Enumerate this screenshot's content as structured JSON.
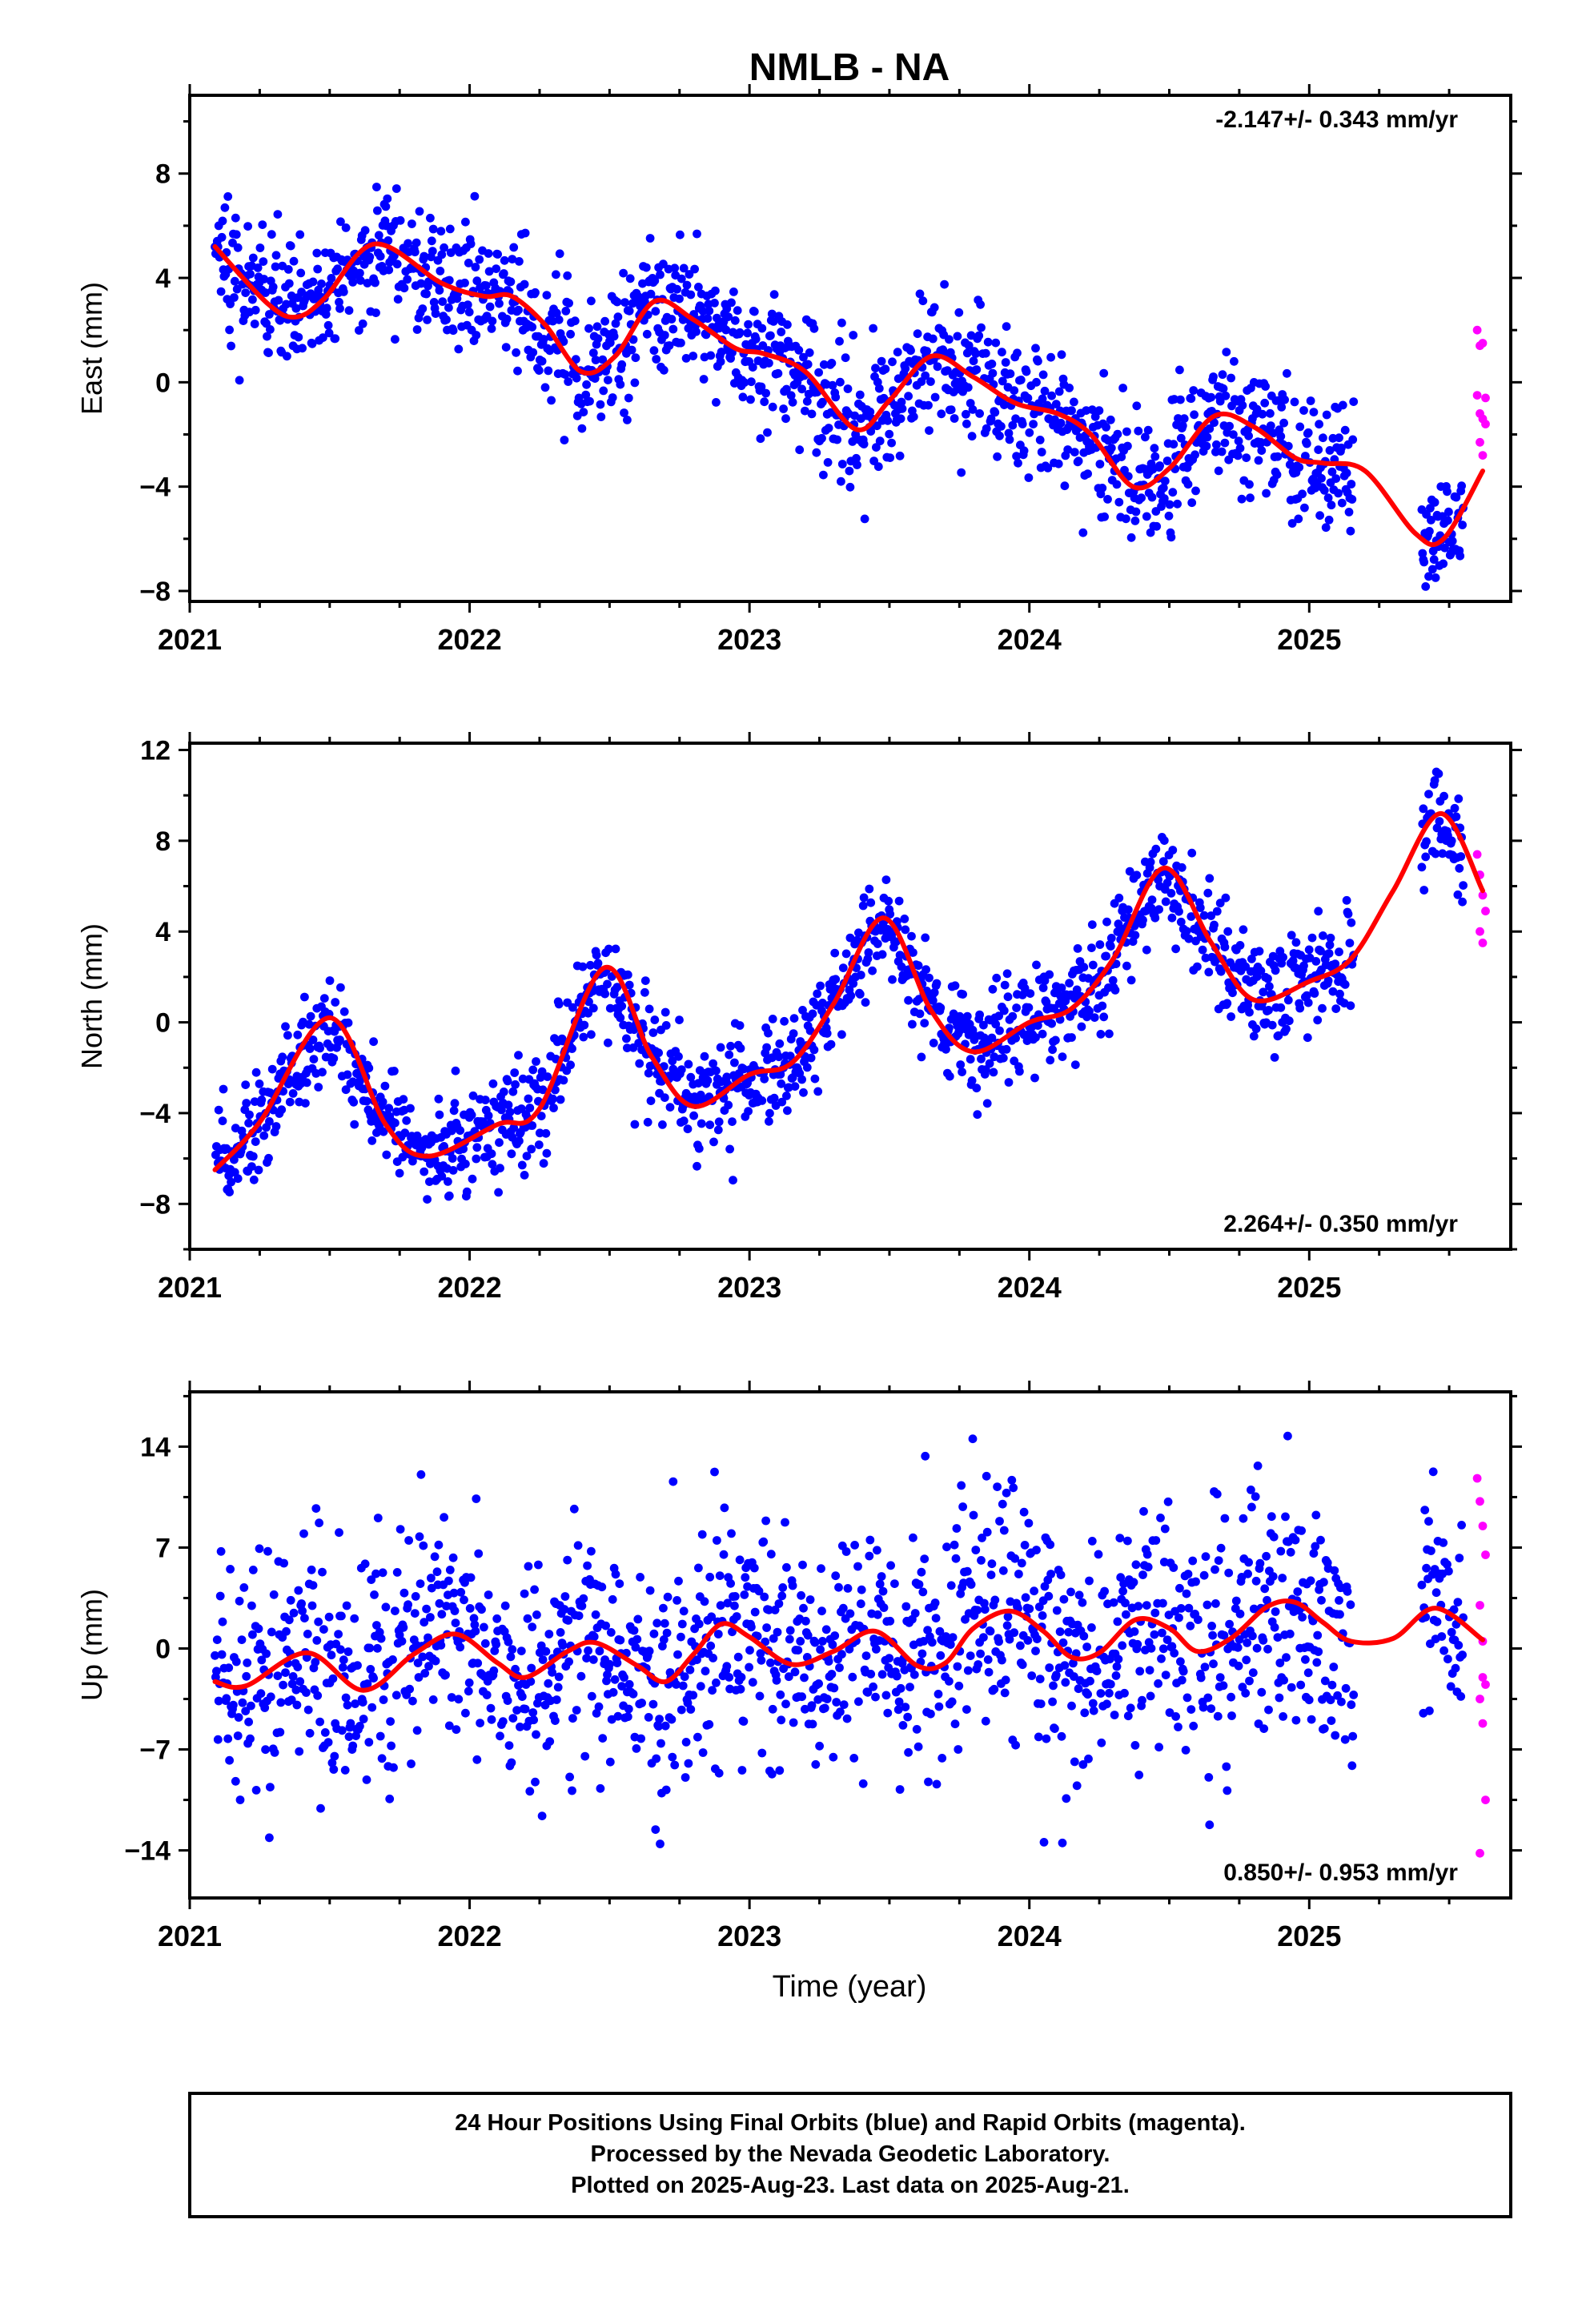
{
  "title": "NMLB - NA",
  "x_axis_label": "Time (year)",
  "footer": {
    "line1": "24 Hour Positions Using Final Orbits (blue) and Rapid Orbits (magenta).",
    "line2": "Processed by the Nevada Geodetic Laboratory.",
    "line3": "Plotted on 2025-Aug-23. Last data on 2025-Aug-21."
  },
  "colors": {
    "final_orbits": "#0000ff",
    "rapid_orbits": "#ff00ff",
    "model_fit": "#ff0000",
    "frame": "#000000"
  },
  "chart_data": [
    {
      "type": "scatter",
      "panel": "east",
      "ylabel": "East (mm)",
      "rate_text": "-2.147+/- 0.343 mm/yr",
      "rate_position": "top-right",
      "xlim": [
        2021.0,
        2025.72
      ],
      "ylim": [
        -8.4,
        11.0
      ],
      "x_ticks": [
        2021,
        2022,
        2023,
        2024,
        2025
      ],
      "y_ticks": [
        -8,
        -4,
        0,
        4,
        8
      ],
      "grid": false,
      "final_orbits": {
        "x_range": [
          2021.09,
          2025.55
        ],
        "approx_trend_start": 5.3,
        "rate_mm_per_yr": -2.147,
        "seasonal_amplitude_mm": 1.5,
        "scatter_std_mm": 1.25
      },
      "rapid_orbits": {
        "x": [
          2025.6,
          2025.61,
          2025.62,
          2025.63,
          2025.6,
          2025.61,
          2025.62,
          2025.63,
          2025.61,
          2025.62
        ],
        "y": [
          2.0,
          1.4,
          1.5,
          -0.6,
          -0.5,
          -1.2,
          -1.4,
          -1.6,
          -2.3,
          -2.8
        ]
      },
      "model_fit": {
        "x": [
          2021.09,
          2021.28,
          2021.38,
          2021.48,
          2021.66,
          2021.9,
          2022.05,
          2022.15,
          2022.27,
          2022.4,
          2022.52,
          2022.66,
          2022.8,
          2022.95,
          2023.05,
          2023.2,
          2023.38,
          2023.5,
          2023.65,
          2023.8,
          2023.95,
          2024.1,
          2024.22,
          2024.37,
          2024.5,
          2024.66,
          2024.8,
          2024.95,
          2025.05,
          2025.2,
          2025.38,
          2025.48,
          2025.62
        ],
        "y": [
          5.2,
          3.0,
          2.5,
          3.2,
          5.3,
          3.8,
          3.3,
          3.3,
          2.2,
          0.4,
          1.0,
          3.1,
          2.4,
          1.3,
          1.1,
          0.4,
          -1.8,
          -0.7,
          1.0,
          0.2,
          -0.8,
          -1.2,
          -2.0,
          -4.0,
          -3.3,
          -1.3,
          -1.7,
          -2.9,
          -3.1,
          -3.4,
          -5.8,
          -6.0,
          -3.4
        ]
      }
    },
    {
      "type": "scatter",
      "panel": "north",
      "ylabel": "North (mm)",
      "rate_text": "2.264+/- 0.350 mm/yr",
      "rate_position": "bottom-right",
      "xlim": [
        2021.0,
        2025.72
      ],
      "ylim": [
        -10.0,
        12.3
      ],
      "x_ticks": [
        2021,
        2022,
        2023,
        2024,
        2025
      ],
      "y_ticks": [
        -8,
        -4,
        0,
        4,
        8,
        12
      ],
      "grid": false,
      "final_orbits": {
        "x_range": [
          2021.09,
          2025.55
        ],
        "approx_trend_start": -4.0,
        "rate_mm_per_yr": 2.264,
        "seasonal_amplitude_mm": 3.8,
        "scatter_std_mm": 1.1
      },
      "rapid_orbits": {
        "x": [
          2025.6,
          2025.61,
          2025.62,
          2025.63,
          2025.61,
          2025.62
        ],
        "y": [
          7.4,
          6.5,
          5.6,
          4.9,
          4.0,
          3.5
        ]
      },
      "model_fit": {
        "x": [
          2021.09,
          2021.25,
          2021.5,
          2021.7,
          2021.85,
          2022.1,
          2022.25,
          2022.48,
          2022.65,
          2022.8,
          2023.0,
          2023.15,
          2023.3,
          2023.48,
          2023.65,
          2023.8,
          2024.0,
          2024.15,
          2024.3,
          2024.48,
          2024.65,
          2024.8,
          2025.0,
          2025.15,
          2025.3,
          2025.47,
          2025.62
        ],
        "y": [
          -6.5,
          -4.4,
          0.2,
          -4.5,
          -5.9,
          -4.5,
          -3.8,
          2.4,
          -1.5,
          -3.7,
          -2.3,
          -1.8,
          0.8,
          4.6,
          0.5,
          -1.3,
          0.0,
          0.6,
          2.8,
          6.8,
          3.5,
          1.0,
          1.8,
          2.8,
          5.8,
          9.2,
          5.8
        ]
      }
    },
    {
      "type": "scatter",
      "panel": "up",
      "ylabel": "Up (mm)",
      "rate_text": "0.850+/- 0.953 mm/yr",
      "rate_position": "bottom-right",
      "xlim": [
        2021.0,
        2025.72
      ],
      "ylim": [
        -17.3,
        17.8
      ],
      "x_ticks": [
        2021,
        2022,
        2023,
        2024,
        2025
      ],
      "y_ticks": [
        -14,
        -7,
        0,
        7,
        14
      ],
      "grid": false,
      "final_orbits": {
        "x_range": [
          2021.09,
          2025.55
        ],
        "approx_trend_start": -2.0,
        "rate_mm_per_yr": 0.85,
        "seasonal_amplitude_mm": 1.5,
        "scatter_std_mm": 4.2
      },
      "rapid_orbits": {
        "x": [
          2025.6,
          2025.61,
          2025.62,
          2025.63,
          2025.61,
          2025.62,
          2025.63,
          2025.61,
          2025.62,
          2025.63,
          2025.61,
          2025.62
        ],
        "y": [
          11.8,
          10.2,
          8.5,
          6.5,
          3.0,
          -2.0,
          -2.5,
          -3.5,
          -5.2,
          -10.5,
          -14.2,
          0.5
        ]
      },
      "model_fit": {
        "x": [
          2021.09,
          2021.2,
          2021.42,
          2021.62,
          2021.8,
          2021.95,
          2022.1,
          2022.2,
          2022.35,
          2022.45,
          2022.6,
          2022.7,
          2022.8,
          2022.9,
          2023.0,
          2023.15,
          2023.3,
          2023.45,
          2023.6,
          2023.7,
          2023.8,
          2023.93,
          2024.05,
          2024.15,
          2024.25,
          2024.38,
          2024.5,
          2024.6,
          2024.72,
          2024.85,
          2024.95,
          2025.05,
          2025.15,
          2025.3,
          2025.45,
          2025.62
        ],
        "y": [
          -2.3,
          -2.6,
          -0.3,
          -2.9,
          -0.4,
          1.0,
          -1.0,
          -2.0,
          -0.2,
          0.4,
          -1.2,
          -2.3,
          -0.4,
          1.7,
          0.8,
          -1.1,
          -0.2,
          1.2,
          -1.2,
          -1.0,
          1.4,
          2.6,
          1.2,
          -0.6,
          -0.3,
          2.0,
          1.4,
          -0.2,
          0.7,
          2.9,
          3.2,
          1.8,
          0.5,
          0.7,
          2.8,
          0.6
        ]
      }
    }
  ]
}
